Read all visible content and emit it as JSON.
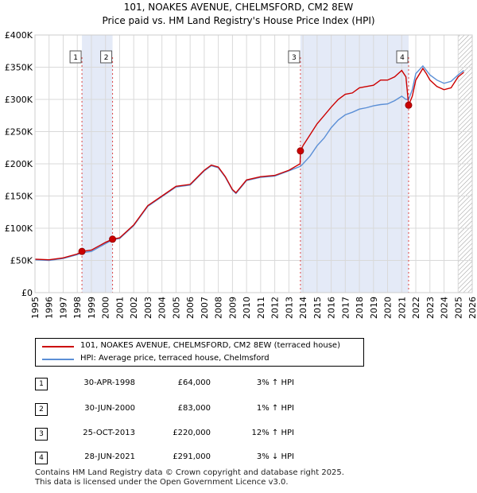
{
  "title_line1": "101, NOAKES AVENUE, CHELMSFORD, CM2 8EW",
  "title_line2": "Price paid vs. HM Land Registry's House Price Index (HPI)",
  "chart_data": {
    "type": "line",
    "ylim": [
      0,
      400000
    ],
    "xlim": [
      1995,
      2026
    ],
    "y_ticks": [
      0,
      50000,
      100000,
      150000,
      200000,
      250000,
      300000,
      350000,
      400000
    ],
    "y_tick_labels": [
      "£0",
      "£50K",
      "£100K",
      "£150K",
      "£200K",
      "£250K",
      "£300K",
      "£350K",
      "£400K"
    ],
    "x_ticks": [
      1995,
      1996,
      1997,
      1998,
      1999,
      2000,
      2001,
      2002,
      2003,
      2004,
      2005,
      2006,
      2007,
      2008,
      2009,
      2010,
      2011,
      2012,
      2013,
      2014,
      2015,
      2016,
      2017,
      2018,
      2019,
      2020,
      2021,
      2022,
      2023,
      2024,
      2025,
      2026
    ],
    "grid": true,
    "shaded_ranges": [
      [
        1998.33,
        2000.5
      ],
      [
        2013.82,
        2021.49
      ]
    ],
    "future_hatch_from": 2025.0,
    "series": [
      {
        "name": "101, NOAKES AVENUE, CHELMSFORD, CM2 8EW (terraced house)",
        "color": "#cc0000",
        "x": [
          1995.0,
          1996.0,
          1997.0,
          1998.0,
          1998.33,
          1999.0,
          2000.0,
          2000.5,
          2001.0,
          2002.0,
          2003.0,
          2004.0,
          2005.0,
          2006.0,
          2007.0,
          2007.5,
          2008.0,
          2008.5,
          2009.0,
          2009.25,
          2010.0,
          2011.0,
          2012.0,
          2013.0,
          2013.8,
          2013.82,
          2014.0,
          2014.5,
          2015.0,
          2015.5,
          2016.0,
          2016.5,
          2017.0,
          2017.5,
          2018.0,
          2018.5,
          2019.0,
          2019.5,
          2020.0,
          2020.5,
          2021.0,
          2021.3,
          2021.49,
          2021.75,
          2022.0,
          2022.5,
          2022.75,
          2023.0,
          2023.5,
          2024.0,
          2024.5,
          2025.0,
          2025.4
        ],
        "y": [
          52000,
          51000,
          54000,
          60000,
          64000,
          66000,
          78000,
          83000,
          85000,
          105000,
          135000,
          150000,
          165000,
          168000,
          190000,
          198000,
          195000,
          180000,
          160000,
          155000,
          175000,
          180000,
          182000,
          190000,
          200000,
          220000,
          228000,
          245000,
          262000,
          275000,
          288000,
          300000,
          308000,
          310000,
          318000,
          320000,
          322000,
          330000,
          330000,
          335000,
          345000,
          335000,
          291000,
          305000,
          330000,
          348000,
          340000,
          330000,
          320000,
          315000,
          318000,
          335000,
          342000
        ]
      },
      {
        "name": "HPI: Average price, terraced house, Chelmsford",
        "color": "#5b8fd6",
        "x": [
          1995.0,
          1996.0,
          1997.0,
          1998.0,
          1998.33,
          1999.0,
          2000.0,
          2000.5,
          2001.0,
          2002.0,
          2003.0,
          2004.0,
          2005.0,
          2006.0,
          2007.0,
          2007.5,
          2008.0,
          2008.5,
          2009.0,
          2009.25,
          2010.0,
          2011.0,
          2012.0,
          2013.0,
          2013.82,
          2014.0,
          2014.5,
          2015.0,
          2015.5,
          2016.0,
          2016.5,
          2017.0,
          2017.5,
          2018.0,
          2018.5,
          2019.0,
          2019.5,
          2020.0,
          2020.5,
          2021.0,
          2021.3,
          2021.49,
          2021.75,
          2022.0,
          2022.5,
          2022.75,
          2023.0,
          2023.5,
          2024.0,
          2024.5,
          2025.0,
          2025.4
        ],
        "y": [
          51000,
          50000,
          53000,
          59000,
          62000,
          64000,
          76000,
          82000,
          84000,
          104000,
          134000,
          149000,
          164000,
          167000,
          189000,
          197000,
          194000,
          179000,
          159000,
          154000,
          174000,
          179000,
          181000,
          189000,
          196000,
          200000,
          212000,
          228000,
          240000,
          256000,
          268000,
          276000,
          280000,
          285000,
          287000,
          290000,
          292000,
          293000,
          298000,
          305000,
          300000,
          300000,
          315000,
          340000,
          352000,
          345000,
          338000,
          330000,
          325000,
          328000,
          338000,
          345000
        ]
      }
    ],
    "markers": [
      {
        "label": "1",
        "x": 1998.33,
        "y": 64000
      },
      {
        "label": "2",
        "x": 2000.5,
        "y": 83000
      },
      {
        "label": "3",
        "x": 2013.82,
        "y": 220000
      },
      {
        "label": "4",
        "x": 2021.49,
        "y": 291000
      }
    ]
  },
  "legend": {
    "items": [
      {
        "label": "101, NOAKES AVENUE, CHELMSFORD, CM2 8EW (terraced house)",
        "color": "#cc0000"
      },
      {
        "label": "HPI: Average price, terraced house, Chelmsford",
        "color": "#5b8fd6"
      }
    ]
  },
  "transactions": [
    {
      "num": "1",
      "date": "30-APR-1998",
      "price": "£64,000",
      "hpi": "3% ↑ HPI"
    },
    {
      "num": "2",
      "date": "30-JUN-2000",
      "price": "£83,000",
      "hpi": "1% ↑ HPI"
    },
    {
      "num": "3",
      "date": "25-OCT-2013",
      "price": "£220,000",
      "hpi": "12% ↑ HPI"
    },
    {
      "num": "4",
      "date": "28-JUN-2021",
      "price": "£291,000",
      "hpi": "3% ↓ HPI"
    }
  ],
  "footer": {
    "line1": "Contains HM Land Registry data © Crown copyright and database right 2025.",
    "line2": "This data is licensed under the Open Government Licence v3.0."
  }
}
